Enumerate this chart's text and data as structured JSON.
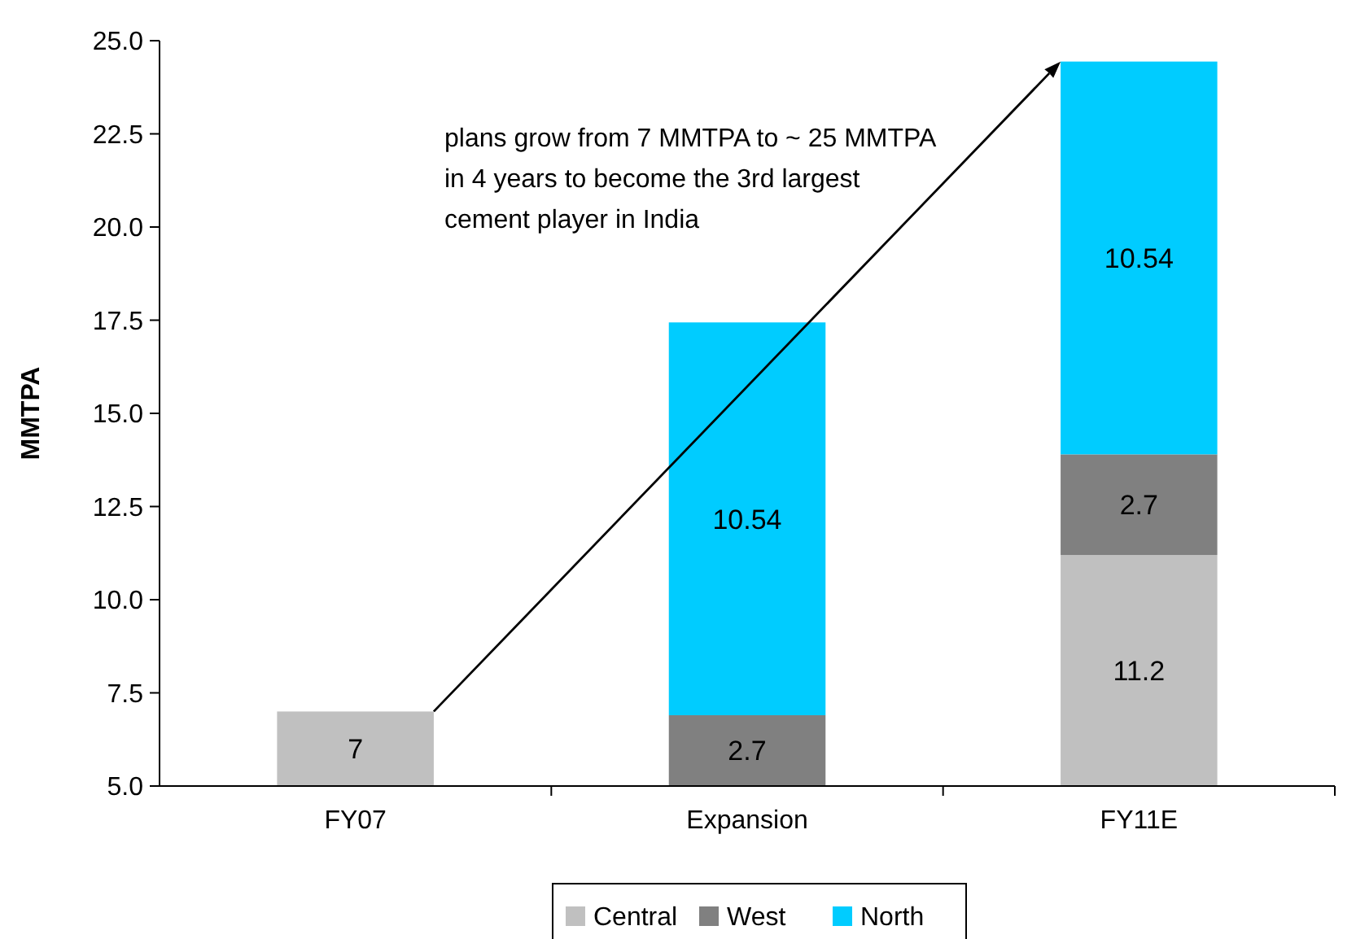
{
  "chart_data": {
    "type": "bar",
    "categories": [
      "FY07",
      "Expansion",
      "FY11E"
    ],
    "series": [
      {
        "name": "Central",
        "color": "#c0c0c0",
        "values": [
          7,
          null,
          11.2
        ],
        "base": [
          0,
          null,
          0
        ]
      },
      {
        "name": "West",
        "color": "#808080",
        "values": [
          null,
          2.7,
          2.7
        ],
        "base": [
          null,
          4.2,
          11.2
        ]
      },
      {
        "name": "North",
        "color": "#00ccff",
        "values": [
          null,
          10.54,
          10.54
        ],
        "base": [
          null,
          6.9,
          13.9
        ]
      }
    ],
    "ylabel": "MMTPA",
    "ylim": [
      5,
      25
    ],
    "yticks": [
      {
        "value": 5,
        "label": "5.0"
      },
      {
        "value": 7.5,
        "label": "7.5"
      },
      {
        "value": 10,
        "label": "10.0"
      },
      {
        "value": 12.5,
        "label": "12.5"
      },
      {
        "value": 15,
        "label": "15.0"
      },
      {
        "value": 17.5,
        "label": "17.5"
      },
      {
        "value": 20,
        "label": "20.0"
      },
      {
        "value": 22.5,
        "label": "22.5"
      },
      {
        "value": 25,
        "label": "25.0"
      }
    ],
    "data_labels": true,
    "legend": "bottom",
    "grid": false,
    "annotations": [
      "plans grow from 7 MMTPA to ~ 25 MMTPA in 4 years to become the 3rd largest cement player in India"
    ]
  }
}
